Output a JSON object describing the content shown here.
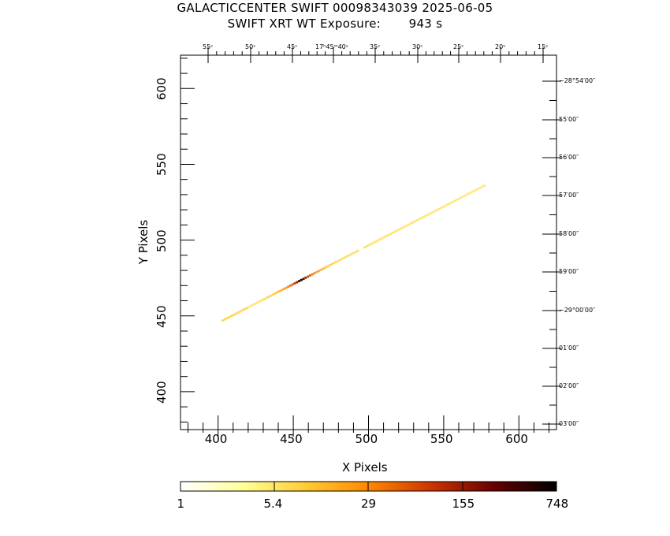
{
  "header": {
    "title_line1": "GALACTICCENTER SWIFT 00098343039 2025-06-05",
    "title_line2": "SWIFT XRT WT Exposure:       943 s"
  },
  "chart_data": {
    "type": "heatmap",
    "xlabel": "X Pixels",
    "ylabel": "Y Pixels",
    "xlim": [
      375,
      625
    ],
    "ylim": [
      375,
      622
    ],
    "x_ticks": [
      400,
      450,
      500,
      550,
      600
    ],
    "y_ticks": [
      400,
      450,
      500,
      550,
      600
    ],
    "ra_ticks": [
      "55ˢ",
      "50ˢ",
      "45ˢ",
      "17ʰ45ᵐ40ˢ",
      "35ˢ",
      "30ˢ",
      "25ˢ",
      "20ˢ",
      "15ˢ"
    ],
    "dec_ticks": [
      "−28°54′00″",
      "55′00″",
      "56′00″",
      "57′00″",
      "58′00″",
      "59′00″",
      "−29°00′00″",
      "01′00″",
      "02′00″",
      "03′00″"
    ],
    "streak": {
      "x_start": 403,
      "y_start": 447,
      "x_end": 577,
      "y_end": 536,
      "peak_x": 455,
      "peak_y": 473,
      "gaps": [
        [
          493,
          496
        ]
      ]
    },
    "colorbar": {
      "scale": "log",
      "ticks": [
        "1",
        "5.4",
        "29",
        "155",
        "748"
      ],
      "colors": [
        "#ffffff",
        "#ffff99",
        "#ffcc33",
        "#ff8800",
        "#cc3300",
        "#660000",
        "#000000"
      ]
    }
  }
}
